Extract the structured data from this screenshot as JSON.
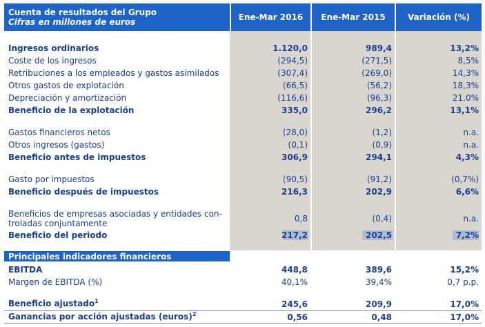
{
  "header": {
    "title": "Cuenta de resultados del Grupo",
    "subtitle": "Cifras en millones de euros",
    "col1": "Ene-Mar 2016",
    "col2": "Ene-Mar 2015",
    "col3": "Variación (%)"
  },
  "rows": {
    "r0": {
      "label": "Ingresos ordinarios",
      "v1": "1.120,0",
      "v2": "989,4",
      "v3": "13,2%"
    },
    "r1": {
      "label": "Coste de los ingresos",
      "v1": "(294,5)",
      "v2": "(271,5)",
      "v3": "8,5%"
    },
    "r2": {
      "label": "Retribuciones a los empleados y gastos asimilados",
      "v1": "(307,4)",
      "v2": "(269,0)",
      "v3": "14,3%"
    },
    "r3": {
      "label": "Otros gastos de explotación",
      "v1": "(66,5)",
      "v2": "(56,2)",
      "v3": "18,3%"
    },
    "r4": {
      "label": "Depreciación y amortización",
      "v1": "(116,6)",
      "v2": "(96,3)",
      "v3": "21,0%"
    },
    "r5": {
      "label": "Beneficio de la explotación",
      "v1": "335,0",
      "v2": "296,2",
      "v3": "13,1%"
    },
    "r6": {
      "label": "Gastos financieros netos",
      "v1": "(28,0)",
      "v2": "(1,2)",
      "v3": "n.a."
    },
    "r7": {
      "label": "Otros ingresos (gastos)",
      "v1": "(0,1)",
      "v2": "(0,9)",
      "v3": "n.a."
    },
    "r8": {
      "label": "Beneficio antes de impuestos",
      "v1": "306,9",
      "v2": "294,1",
      "v3": "4,3%"
    },
    "r9": {
      "label": "Gasto por impuestos",
      "v1": "(90,5)",
      "v2": "(91,2)",
      "v3": "(0,7%)"
    },
    "r10": {
      "label": "Beneficio después de impuestos",
      "v1": "216,3",
      "v2": "202,9",
      "v3": "6,6%"
    },
    "r11": {
      "label_line1": "Beneficios de empresas asociadas y entidades con-",
      "label_line2": "troladas conjuntamente",
      "v1": "0,8",
      "v2": "(0,4)",
      "v3": "n.a."
    },
    "r12": {
      "label": "Beneficio del periodo",
      "v1": "217,2",
      "v2": "202,5",
      "v3": "7,2%"
    }
  },
  "section2": {
    "title": "Principales indicadores financieros",
    "ebitda": {
      "label": "EBITDA",
      "v1": "448,8",
      "v2": "389,6",
      "v3": "15,2%"
    },
    "margin": {
      "label": "Margen de EBITDA (%)",
      "v1": "40,1%",
      "v2": "39,4%",
      "v3": "0,7 p.p."
    },
    "adj": {
      "label": "Beneficio ajustado",
      "sup": "1",
      "v1": "245,6",
      "v2": "209,9",
      "v3": "17,0%"
    },
    "eps": {
      "label": "Ganancias por acción ajustadas (euros)",
      "sup": "2",
      "v1": "0,56",
      "v2": "0,48",
      "v3": "17,0%"
    }
  }
}
